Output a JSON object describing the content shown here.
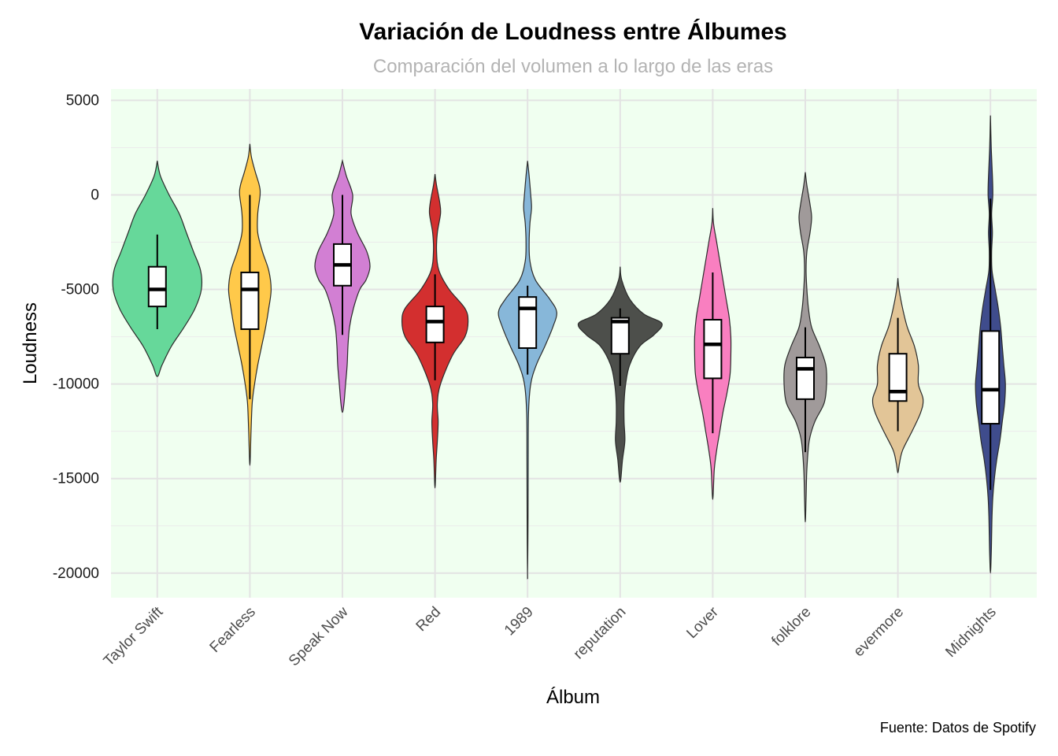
{
  "chart_data": {
    "type": "violin",
    "title": "Variación de Loudness entre Álbumes",
    "subtitle": "Comparación del volumen a lo largo de las eras",
    "xlabel": "Álbum",
    "ylabel": "Loudness",
    "caption": "Fuente: Datos de Spotify",
    "ylim": [
      -21300,
      5600
    ],
    "yticks": [
      {
        "value": 5000,
        "label": "5000"
      },
      {
        "value": 0,
        "label": "0"
      },
      {
        "value": -5000,
        "label": "-5000"
      },
      {
        "value": -10000,
        "label": "-10000"
      },
      {
        "value": -15000,
        "label": "-15000"
      },
      {
        "value": -20000,
        "label": "-20000"
      }
    ],
    "grid": true,
    "panel_color": "#f0fff0",
    "categories": [
      "Taylor Swift",
      "Fearless",
      "Speak Now",
      "Red",
      "1989",
      "reputation",
      "Lover",
      "folklore",
      "evermore",
      "Midnights"
    ],
    "series": [
      {
        "name": "Taylor Swift",
        "color": "#66d89a",
        "box": {
          "min": -7100,
          "q1": -5900,
          "median": -5000,
          "q3": -3800,
          "max": -2100
        },
        "violin": [
          [
            1800,
            0
          ],
          [
            1000,
            4
          ],
          [
            0,
            15
          ],
          [
            -1000,
            28
          ],
          [
            -2000,
            37
          ],
          [
            -3000,
            46
          ],
          [
            -4000,
            55
          ],
          [
            -5000,
            56
          ],
          [
            -6000,
            48
          ],
          [
            -7000,
            34
          ],
          [
            -8000,
            18
          ],
          [
            -9000,
            6
          ],
          [
            -9600,
            0
          ]
        ]
      },
      {
        "name": "Fearless",
        "color": "#ffc94a",
        "box": {
          "min": -10800,
          "q1": -7100,
          "median": -5000,
          "q3": -4100,
          "max": 0
        },
        "violin": [
          [
            2700,
            0
          ],
          [
            2000,
            2
          ],
          [
            1200,
            7
          ],
          [
            500,
            12
          ],
          [
            0,
            13
          ],
          [
            -1000,
            10
          ],
          [
            -2000,
            10
          ],
          [
            -3000,
            16
          ],
          [
            -4000,
            24
          ],
          [
            -5000,
            27
          ],
          [
            -6000,
            24
          ],
          [
            -7000,
            20
          ],
          [
            -8000,
            15
          ],
          [
            -9000,
            10
          ],
          [
            -10000,
            6
          ],
          [
            -11000,
            3
          ],
          [
            -12500,
            1.5
          ],
          [
            -14300,
            0
          ]
        ]
      },
      {
        "name": "Speak Now",
        "color": "#d27fd3",
        "box": {
          "min": -7400,
          "q1": -4800,
          "median": -3700,
          "q3": -2600,
          "max": 0
        },
        "violin": [
          [
            1800,
            0
          ],
          [
            1000,
            5
          ],
          [
            0,
            13
          ],
          [
            -1000,
            11
          ],
          [
            -2000,
            19
          ],
          [
            -3000,
            31
          ],
          [
            -3800,
            35
          ],
          [
            -4500,
            30
          ],
          [
            -5000,
            22
          ],
          [
            -6000,
            14
          ],
          [
            -7000,
            9
          ],
          [
            -8000,
            7
          ],
          [
            -9000,
            6
          ],
          [
            -10000,
            4
          ],
          [
            -11000,
            2
          ],
          [
            -11500,
            0
          ]
        ]
      },
      {
        "name": "Red",
        "color": "#d32f2f",
        "box": {
          "min": -9800,
          "q1": -7800,
          "median": -6700,
          "q3": -5900,
          "max": -4200
        },
        "violin": [
          [
            1100,
            0
          ],
          [
            500,
            2
          ],
          [
            -400,
            6
          ],
          [
            -1000,
            7
          ],
          [
            -2000,
            3
          ],
          [
            -3000,
            2
          ],
          [
            -4000,
            5
          ],
          [
            -5000,
            18
          ],
          [
            -6000,
            38
          ],
          [
            -6700,
            42
          ],
          [
            -7500,
            38
          ],
          [
            -8500,
            22
          ],
          [
            -10000,
            7
          ],
          [
            -11000,
            3
          ],
          [
            -12000,
            4
          ],
          [
            -13000,
            3
          ],
          [
            -14000,
            1.5
          ],
          [
            -15500,
            0
          ]
        ]
      },
      {
        "name": "1989",
        "color": "#87b7d9",
        "box": {
          "min": -9500,
          "q1": -8100,
          "median": -6000,
          "q3": -5400,
          "max": -4800
        },
        "violin": [
          [
            1800,
            0
          ],
          [
            1000,
            2
          ],
          [
            0,
            4
          ],
          [
            -700,
            5
          ],
          [
            -1500,
            3
          ],
          [
            -2500,
            2
          ],
          [
            -3500,
            3
          ],
          [
            -4500,
            10
          ],
          [
            -5500,
            28
          ],
          [
            -6200,
            37
          ],
          [
            -7000,
            32
          ],
          [
            -8000,
            22
          ],
          [
            -9000,
            11
          ],
          [
            -10000,
            4
          ],
          [
            -11500,
            1.2
          ],
          [
            -14000,
            0.8
          ],
          [
            -17000,
            0.6
          ],
          [
            -20300,
            0
          ]
        ]
      },
      {
        "name": "reputation",
        "color": "#4d4f4b",
        "box": {
          "min": -10100,
          "q1": -8400,
          "median": -6700,
          "q3": -6500,
          "max": -6000
        },
        "violin": [
          [
            -3800,
            0
          ],
          [
            -4500,
            2
          ],
          [
            -5500,
            12
          ],
          [
            -6300,
            30
          ],
          [
            -6800,
            53
          ],
          [
            -7400,
            43
          ],
          [
            -8000,
            25
          ],
          [
            -9000,
            12
          ],
          [
            -10000,
            7
          ],
          [
            -11000,
            5
          ],
          [
            -12000,
            5
          ],
          [
            -13000,
            6
          ],
          [
            -14000,
            3
          ],
          [
            -15200,
            0
          ]
        ]
      },
      {
        "name": "Lover",
        "color": "#f97fc0",
        "box": {
          "min": -12600,
          "q1": -9700,
          "median": -7900,
          "q3": -6600,
          "max": -4100
        },
        "violin": [
          [
            -700,
            0
          ],
          [
            -1500,
            1
          ],
          [
            -2500,
            5
          ],
          [
            -3500,
            9
          ],
          [
            -4500,
            13
          ],
          [
            -5500,
            17
          ],
          [
            -6500,
            21
          ],
          [
            -7500,
            23
          ],
          [
            -8500,
            23
          ],
          [
            -9500,
            22
          ],
          [
            -10500,
            18
          ],
          [
            -11500,
            13
          ],
          [
            -12500,
            9
          ],
          [
            -13500,
            5
          ],
          [
            -14500,
            2
          ],
          [
            -16100,
            0
          ]
        ]
      },
      {
        "name": "folklore",
        "color": "#a09a9a",
        "box": {
          "min": -13600,
          "q1": -10800,
          "median": -9200,
          "q3": -8600,
          "max": -7000
        },
        "violin": [
          [
            1200,
            0
          ],
          [
            500,
            2
          ],
          [
            -500,
            6
          ],
          [
            -1200,
            8
          ],
          [
            -2000,
            6
          ],
          [
            -3000,
            2
          ],
          [
            -4000,
            1
          ],
          [
            -5000,
            2
          ],
          [
            -6000,
            4
          ],
          [
            -7000,
            8
          ],
          [
            -8000,
            18
          ],
          [
            -9000,
            26
          ],
          [
            -10000,
            27
          ],
          [
            -11000,
            24
          ],
          [
            -12000,
            12
          ],
          [
            -13000,
            5
          ],
          [
            -14500,
            2
          ],
          [
            -16000,
            1
          ],
          [
            -17300,
            0
          ]
        ]
      },
      {
        "name": "evermore",
        "color": "#e2c597",
        "box": {
          "min": -12500,
          "q1": -10900,
          "median": -10400,
          "q3": -8400,
          "max": -6500
        },
        "violin": [
          [
            -4400,
            0
          ],
          [
            -5000,
            1.5
          ],
          [
            -6000,
            6
          ],
          [
            -7000,
            12
          ],
          [
            -8000,
            21
          ],
          [
            -9000,
            26
          ],
          [
            -10000,
            26
          ],
          [
            -10800,
            32
          ],
          [
            -11500,
            29
          ],
          [
            -12500,
            18
          ],
          [
            -13500,
            6
          ],
          [
            -14200,
            2
          ],
          [
            -14700,
            0
          ]
        ]
      },
      {
        "name": "Midnights",
        "color": "#3f4c8c",
        "box": {
          "min": -15600,
          "q1": -12100,
          "median": -10300,
          "q3": -7200,
          "max": -200
        },
        "violin": [
          [
            4200,
            0
          ],
          [
            2500,
            1
          ],
          [
            1000,
            2.5
          ],
          [
            0,
            3
          ],
          [
            -1000,
            1.5
          ],
          [
            -2000,
            2.5
          ],
          [
            -3000,
            1.5
          ],
          [
            -4000,
            2
          ],
          [
            -5000,
            6
          ],
          [
            -6000,
            10
          ],
          [
            -7000,
            13
          ],
          [
            -8000,
            15
          ],
          [
            -9000,
            17
          ],
          [
            -10000,
            19
          ],
          [
            -11000,
            18
          ],
          [
            -12000,
            15
          ],
          [
            -13000,
            12
          ],
          [
            -14000,
            8
          ],
          [
            -15000,
            5
          ],
          [
            -16000,
            3
          ],
          [
            -17000,
            2
          ],
          [
            -18000,
            1.5
          ],
          [
            -19000,
            1
          ],
          [
            -20000,
            0
          ]
        ]
      }
    ]
  }
}
